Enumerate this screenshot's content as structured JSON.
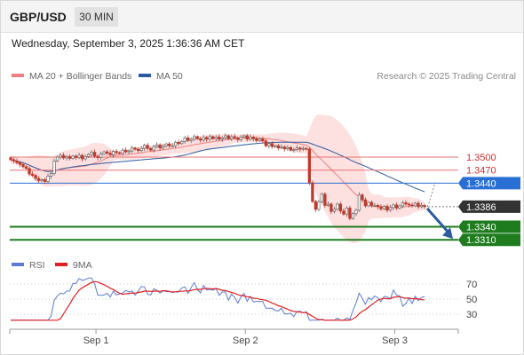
{
  "header": {
    "symbol": "GBP/USD",
    "timeframe": "30 MIN"
  },
  "datetime": "Wednesday, September 3, 2025 1:36:36 AM CET",
  "legend": [
    {
      "label": "MA 20 + Bollinger Bands",
      "color": "#f08080"
    },
    {
      "label": "MA 50",
      "color": "#2b5aa0"
    }
  ],
  "credit": "Research © 2025 Trading Central",
  "rsi_legend": [
    {
      "label": "RSI",
      "color": "#5b7bd5"
    },
    {
      "label": "9MA",
      "color": "#e02020"
    }
  ],
  "colors": {
    "bull": "#666666",
    "bear": "#c0392b",
    "band_fill": "#fde0e0",
    "ma20": "#f08080",
    "ma50": "#2b5aa0",
    "resistance": "#e57373",
    "pivot": "#2a6fd6",
    "support": "#1e7b1e",
    "current": "#333333",
    "arrow": "#2b5aa0",
    "rsi": "#5b7bd5",
    "rsi_ma": "#e02020"
  },
  "chart_data": {
    "type": "candlestick",
    "symbol": "GBP/USD",
    "interval": "30 MIN",
    "ylim": [
      1.329,
      1.3555
    ],
    "x_ticks": [
      {
        "label": "Sep 1",
        "index": 28
      },
      {
        "label": "Sep 2",
        "index": 76
      },
      {
        "label": "Sep 3",
        "index": 124
      }
    ],
    "levels": [
      {
        "label": "1.3500",
        "value": 1.35,
        "kind": "resistance"
      },
      {
        "label": "1.3470",
        "value": 1.347,
        "kind": "resistance"
      },
      {
        "label": "1.3440",
        "value": 1.344,
        "kind": "pivot"
      },
      {
        "label": "1.3386",
        "value": 1.3386,
        "kind": "current"
      },
      {
        "label": "1.3340",
        "value": 1.334,
        "kind": "support"
      },
      {
        "label": "1.3310",
        "value": 1.331,
        "kind": "support"
      }
    ],
    "closes": [
      1.3494,
      1.3491,
      1.3487,
      1.3483,
      1.3478,
      1.3474,
      1.3461,
      1.3458,
      1.3451,
      1.3446,
      1.3448,
      1.3444,
      1.3456,
      1.3462,
      1.3491,
      1.35,
      1.3504,
      1.3498,
      1.3501,
      1.3497,
      1.3502,
      1.3499,
      1.3504,
      1.3496,
      1.3501,
      1.3506,
      1.3511,
      1.3502,
      1.3499,
      1.3507,
      1.3512,
      1.3509,
      1.3505,
      1.3513,
      1.351,
      1.3509,
      1.3516,
      1.3512,
      1.3514,
      1.3521,
      1.3518,
      1.3515,
      1.352,
      1.3527,
      1.352,
      1.3516,
      1.3524,
      1.3528,
      1.3521,
      1.3525,
      1.353,
      1.3526,
      1.3526,
      1.3534,
      1.3531,
      1.3536,
      1.3544,
      1.3538,
      1.3541,
      1.3547,
      1.3542,
      1.3539,
      1.3545,
      1.3541,
      1.3547,
      1.3542,
      1.3546,
      1.3541,
      1.3544,
      1.3549,
      1.3542,
      1.3547,
      1.3544,
      1.354,
      1.3546,
      1.3549,
      1.3541,
      1.3546,
      1.3542,
      1.3538,
      1.3542,
      1.3537,
      1.3526,
      1.3531,
      1.3524,
      1.3526,
      1.3521,
      1.3523,
      1.3519,
      1.3522,
      1.3516,
      1.3517,
      1.3521,
      1.3518,
      1.352,
      1.3518,
      1.3441,
      1.3398,
      1.338,
      1.3397,
      1.3415,
      1.3389,
      1.3392,
      1.3375,
      1.338,
      1.3392,
      1.3376,
      1.3369,
      1.3383,
      1.3359,
      1.337,
      1.3378,
      1.3413,
      1.3402,
      1.3388,
      1.3396,
      1.3389,
      1.3389,
      1.3386,
      1.3381,
      1.3387,
      1.3378,
      1.3384,
      1.339,
      1.3383,
      1.3388,
      1.3395,
      1.3392,
      1.339,
      1.3388,
      1.3394,
      1.3386,
      1.3389,
      1.3386
    ],
    "ma20_range": [
      1.3462,
      1.3389
    ],
    "ma50_range": [
      1.3498,
      1.344
    ],
    "rsi": {
      "ylim": [
        20,
        80
      ],
      "ticks": [
        70,
        50,
        30
      ],
      "last_rsi": 45,
      "last_ma": 44
    }
  }
}
